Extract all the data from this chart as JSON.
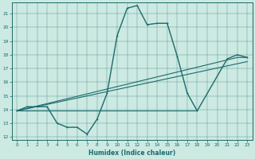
{
  "xlabel": "Humidex (Indice chaleur)",
  "xlim": [
    -0.5,
    23.5
  ],
  "ylim": [
    11.8,
    21.8
  ],
  "yticks": [
    12,
    13,
    14,
    15,
    16,
    17,
    18,
    19,
    20,
    21
  ],
  "xticks": [
    0,
    1,
    2,
    3,
    4,
    5,
    6,
    7,
    8,
    9,
    10,
    11,
    12,
    13,
    14,
    15,
    16,
    17,
    18,
    19,
    20,
    21,
    22,
    23
  ],
  "background_color": "#cce9e2",
  "line_color": "#1a6b6b",
  "lines": [
    {
      "x": [
        0,
        1,
        2,
        3,
        4,
        5,
        6,
        7,
        8,
        9,
        10,
        11,
        12,
        13,
        14,
        15,
        16,
        17,
        18,
        21,
        22,
        23
      ],
      "y": [
        13.9,
        14.2,
        14.2,
        14.2,
        13.0,
        12.7,
        12.7,
        12.2,
        13.3,
        15.2,
        19.4,
        21.4,
        21.6,
        20.2,
        20.3,
        20.3,
        17.9,
        15.2,
        13.9,
        17.7,
        18.0,
        17.8
      ],
      "marker": true,
      "linewidth": 1.0,
      "markersize": 2.0
    },
    {
      "x": [
        0,
        22,
        23
      ],
      "y": [
        13.9,
        17.8,
        17.8
      ],
      "marker": false,
      "linewidth": 0.8,
      "markersize": 0
    },
    {
      "x": [
        0,
        23
      ],
      "y": [
        13.9,
        17.5
      ],
      "marker": false,
      "linewidth": 0.8,
      "markersize": 0
    },
    {
      "x": [
        0,
        3,
        18
      ],
      "y": [
        13.9,
        13.9,
        13.9
      ],
      "marker": false,
      "linewidth": 0.8,
      "markersize": 0
    }
  ]
}
